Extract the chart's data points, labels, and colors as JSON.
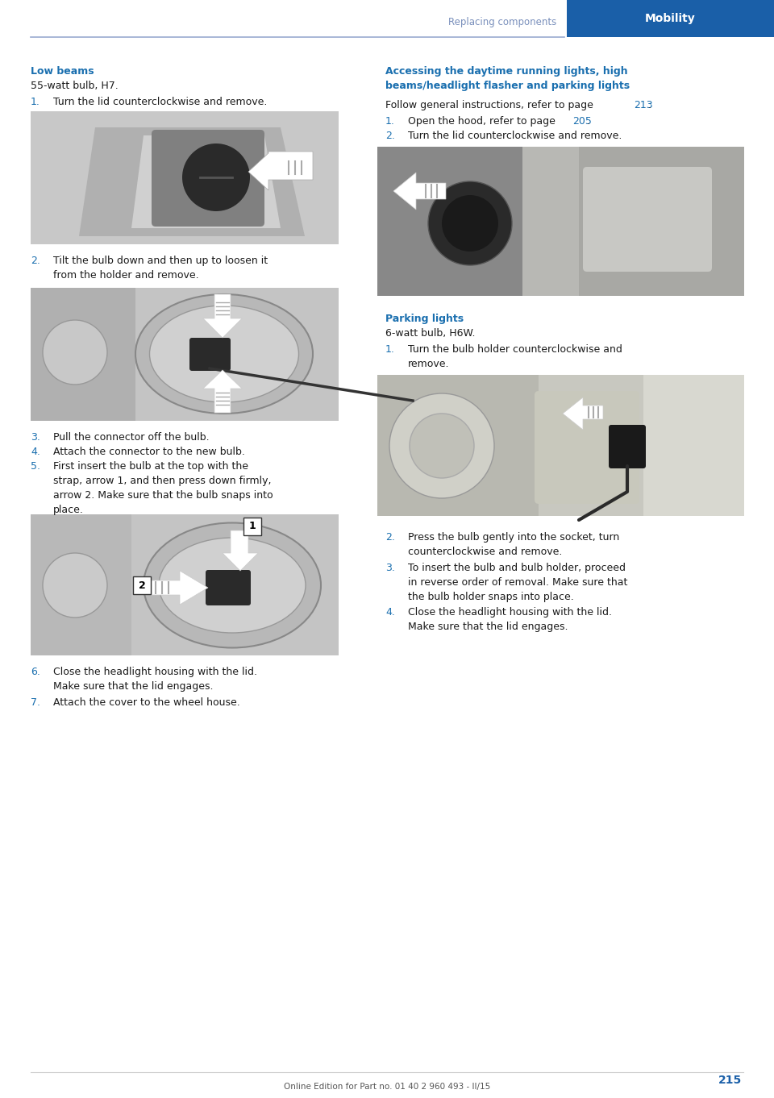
{
  "page_width": 9.6,
  "page_height": 13.62,
  "dpi": 100,
  "bg_color": "#ffffff",
  "header_text": "Replacing components",
  "header_text_color": "#7a90bc",
  "header_tab_text": "Mobility",
  "header_tab_color": "#1a5fa8",
  "header_tab_text_color": "#ffffff",
  "divider_color": "#9aaad0",
  "section_title_color": "#1a6faf",
  "body_text_color": "#1a1a1a",
  "section_title_left": "Low beams",
  "section_subtitle_left": "55-watt bulb, H7.",
  "section_title_right": "Accessing the daytime running lights, high\nbeams/headlight flasher and parking lights",
  "section_title_parking": "Parking lights",
  "parking_subtitle": "6-watt bulb, H6W.",
  "right_intro_page": "213",
  "right_intro_page_color": "#1a6faf",
  "footer_text": "Online Edition for Part no. 01 40 2 960 493 - II/15",
  "footer_text_color": "#555555",
  "page_number": "215",
  "number_color": "#1a5fa8",
  "img_bg1": "#c8c8c8",
  "img_bg2": "#c0c0c0",
  "img_bg3": "#c4c4c4",
  "img_bg_dark": "#888888",
  "img_bg_right1": "#b0b8b8",
  "img_bg_right2": "#b8b8b4"
}
